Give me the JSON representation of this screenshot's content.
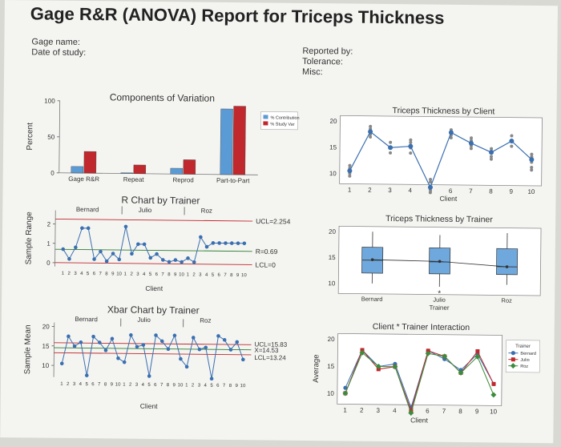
{
  "header": {
    "title": "Gage R&R (ANOVA) Report for Triceps Thickness",
    "left_meta": [
      "Gage name:",
      "Date of study:"
    ],
    "right_meta": [
      "Reported by:",
      "Tolerance:",
      "Misc:"
    ]
  },
  "colors": {
    "contribution": "#5b9bd5",
    "study_var": "#c0282d",
    "points": "#3a6fb0",
    "limit_line": "#c0282d",
    "box_fill": "#6fa8dc",
    "bernard": "#3a6fb0",
    "julio": "#c0282d",
    "roz": "#3c8c3c"
  },
  "chart_data": [
    {
      "id": "components",
      "type": "bar",
      "title": "Components of Variation",
      "ylabel": "Percent",
      "ylim": [
        0,
        100
      ],
      "yticks": [
        0,
        50,
        100
      ],
      "categories": [
        "Gage R&R",
        "Repeat",
        "Reprod",
        "Part-to-Part"
      ],
      "series": [
        {
          "name": "% Contribution",
          "values": [
            9,
            1,
            8,
            91
          ]
        },
        {
          "name": "% Study Var",
          "values": [
            30,
            12,
            20,
            95
          ]
        }
      ],
      "legend": "top-right"
    },
    {
      "id": "by_client",
      "type": "scatter",
      "title": "Triceps Thickness by Client",
      "xlabel": "Client",
      "xticks": [
        1,
        2,
        3,
        4,
        5,
        6,
        7,
        8,
        9,
        10
      ],
      "ylim": [
        8,
        21
      ],
      "yticks": [
        10,
        15,
        20
      ],
      "means": [
        10.5,
        18,
        15,
        15.3,
        7.5,
        18,
        16,
        14.3,
        16.5,
        13
      ],
      "points": [
        [
          9.5,
          10,
          10.5,
          11,
          11.5
        ],
        [
          17,
          17.5,
          18,
          18.5,
          19
        ],
        [
          14,
          15,
          16
        ],
        [
          14,
          15,
          16,
          16.5
        ],
        [
          6.5,
          7,
          7.5,
          8.5,
          9
        ],
        [
          17,
          17.5,
          18,
          18.5
        ],
        [
          15,
          15.5,
          16,
          16.5,
          17
        ],
        [
          13,
          13.5,
          14.5,
          15
        ],
        [
          15.5,
          16.5,
          17.5
        ],
        [
          11,
          11.5,
          12.5,
          13,
          13.5,
          14
        ]
      ]
    },
    {
      "id": "r_chart",
      "type": "line",
      "title": "R Chart by Trainer",
      "ylabel": "Sample Range",
      "xlabel": "Client",
      "groups": [
        "Bernard",
        "Julio",
        "Roz"
      ],
      "xticks": [
        "1",
        "2",
        "3",
        "4",
        "5",
        "6",
        "7",
        "8",
        "9",
        "10"
      ],
      "ylim": [
        -0.2,
        2.7
      ],
      "yticks": [
        0,
        1,
        2
      ],
      "limits": [
        {
          "label": "UCL=2.254",
          "value": 2.254
        },
        {
          "label": "R=0.69",
          "value": 0.69
        },
        {
          "label": "LCL=0",
          "value": 0
        }
      ],
      "values": [
        0.7,
        0.2,
        0.8,
        1.8,
        1.8,
        0.2,
        0.6,
        0.1,
        0.5,
        0.2,
        1.9,
        0.5,
        1.0,
        1.0,
        0.3,
        0.5,
        0.2,
        0.1,
        0.2,
        0.1,
        0.3,
        0.1,
        1.4,
        0.9,
        1.1,
        1.1,
        1.1,
        1.1,
        1.1,
        1.1
      ]
    },
    {
      "id": "by_trainer",
      "type": "box",
      "title": "Triceps Thickness by Trainer",
      "xlabel": "Trainer",
      "categories": [
        "Bernard",
        "Julio",
        "Roz"
      ],
      "ylim": [
        8,
        21
      ],
      "yticks": [
        10,
        15,
        20
      ],
      "boxes": [
        {
          "q1": 12,
          "median": 14.5,
          "q3": 17,
          "whisker_low": 10,
          "whisker_high": 20,
          "mean": 14.6
        },
        {
          "q1": 12,
          "median": 14.3,
          "q3": 17,
          "whisker_low": 9.5,
          "whisker_high": 19.5,
          "mean": 14.4,
          "outlier": 8.2
        },
        {
          "q1": 12,
          "median": 13.5,
          "q3": 17,
          "whisker_low": 10,
          "whisker_high": 20,
          "mean": 13.5
        }
      ]
    },
    {
      "id": "xbar_chart",
      "type": "line",
      "title": "Xbar Chart by Trainer",
      "ylabel": "Sample Mean",
      "xlabel": "Client",
      "groups": [
        "Bernard",
        "Julio",
        "Roz"
      ],
      "xticks": [
        "1",
        "2",
        "3",
        "4",
        "5",
        "6",
        "7",
        "8",
        "9",
        "10"
      ],
      "ylim": [
        7,
        21
      ],
      "yticks": [
        10,
        15,
        20
      ],
      "limits": [
        {
          "label": "UCL=15.83",
          "value": 15.83
        },
        {
          "label": "X=14.53",
          "value": 14.53
        },
        {
          "label": "LCL=13.24",
          "value": 13.24
        }
      ],
      "values": [
        10.5,
        17.5,
        15,
        16,
        7.5,
        17.5,
        16,
        14,
        17,
        12,
        11,
        18,
        15,
        15.5,
        7.5,
        18,
        16.5,
        14.5,
        18,
        12,
        10,
        17.5,
        14.5,
        15,
        7,
        18,
        17,
        14.5,
        16.5,
        12
      ]
    },
    {
      "id": "interaction",
      "type": "line",
      "title": "Client * Trainer Interaction",
      "ylabel": "Average",
      "xlabel": "Client",
      "xticks": [
        1,
        2,
        3,
        4,
        5,
        6,
        7,
        8,
        9,
        10
      ],
      "ylim": [
        8,
        21
      ],
      "yticks": [
        10,
        15,
        20
      ],
      "legend_title": "Trainer",
      "legend": "top-right",
      "series": [
        {
          "name": "Bernard",
          "values": [
            11,
            18,
            15,
            15.5,
            7.5,
            18,
            16.5,
            14.5,
            17.5,
            12
          ]
        },
        {
          "name": "Julio",
          "values": [
            10,
            18,
            14.5,
            15,
            7,
            18,
            17,
            14,
            18,
            12
          ]
        },
        {
          "name": "Roz",
          "values": [
            10,
            17.5,
            15,
            15,
            6.5,
            17.5,
            17,
            14,
            17,
            10
          ]
        }
      ]
    }
  ]
}
